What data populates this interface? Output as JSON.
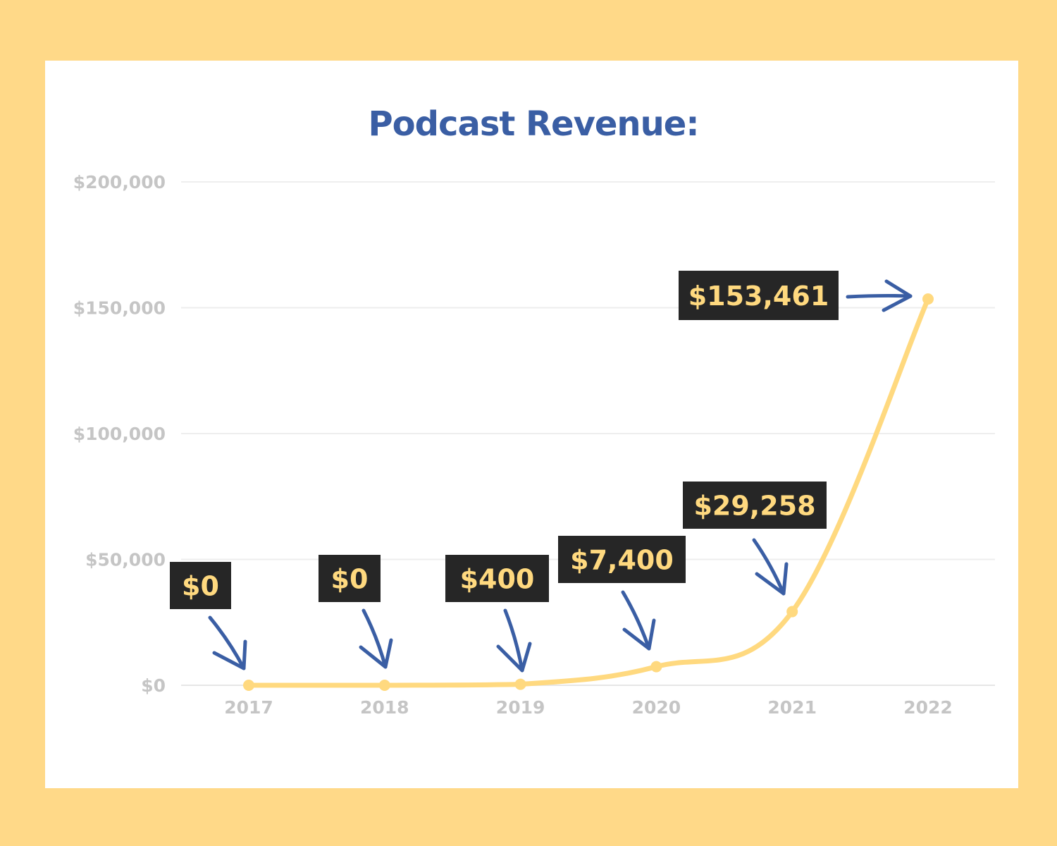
{
  "colors": {
    "frame_background": "#FFD988",
    "card_background": "#FFFFFF",
    "title": "#3A5EA4",
    "line": "#FFD97F",
    "gridline": "#EEEEEE",
    "tick_label": "#C5C5C5",
    "callout_box": "#262626",
    "callout_text": "#FFD97F",
    "arrow": "#3A5EA4"
  },
  "chart_data": {
    "type": "line",
    "title": "Podcast Revenue:",
    "xlabel": "",
    "ylabel": "",
    "categories": [
      "2017",
      "2018",
      "2019",
      "2020",
      "2021",
      "2022"
    ],
    "series": [
      {
        "values": [
          0,
          0,
          400,
          7400,
          29258,
          153461
        ]
      }
    ],
    "y_ticks": [
      "$0",
      "$50,000",
      "$100,000",
      "$150,000",
      "$200,000"
    ],
    "ylim": [
      0,
      200000
    ],
    "grid": true,
    "data_labels": [
      "$0",
      "$0",
      "$400",
      "$7,400",
      "$29,258",
      "$153,461"
    ]
  }
}
